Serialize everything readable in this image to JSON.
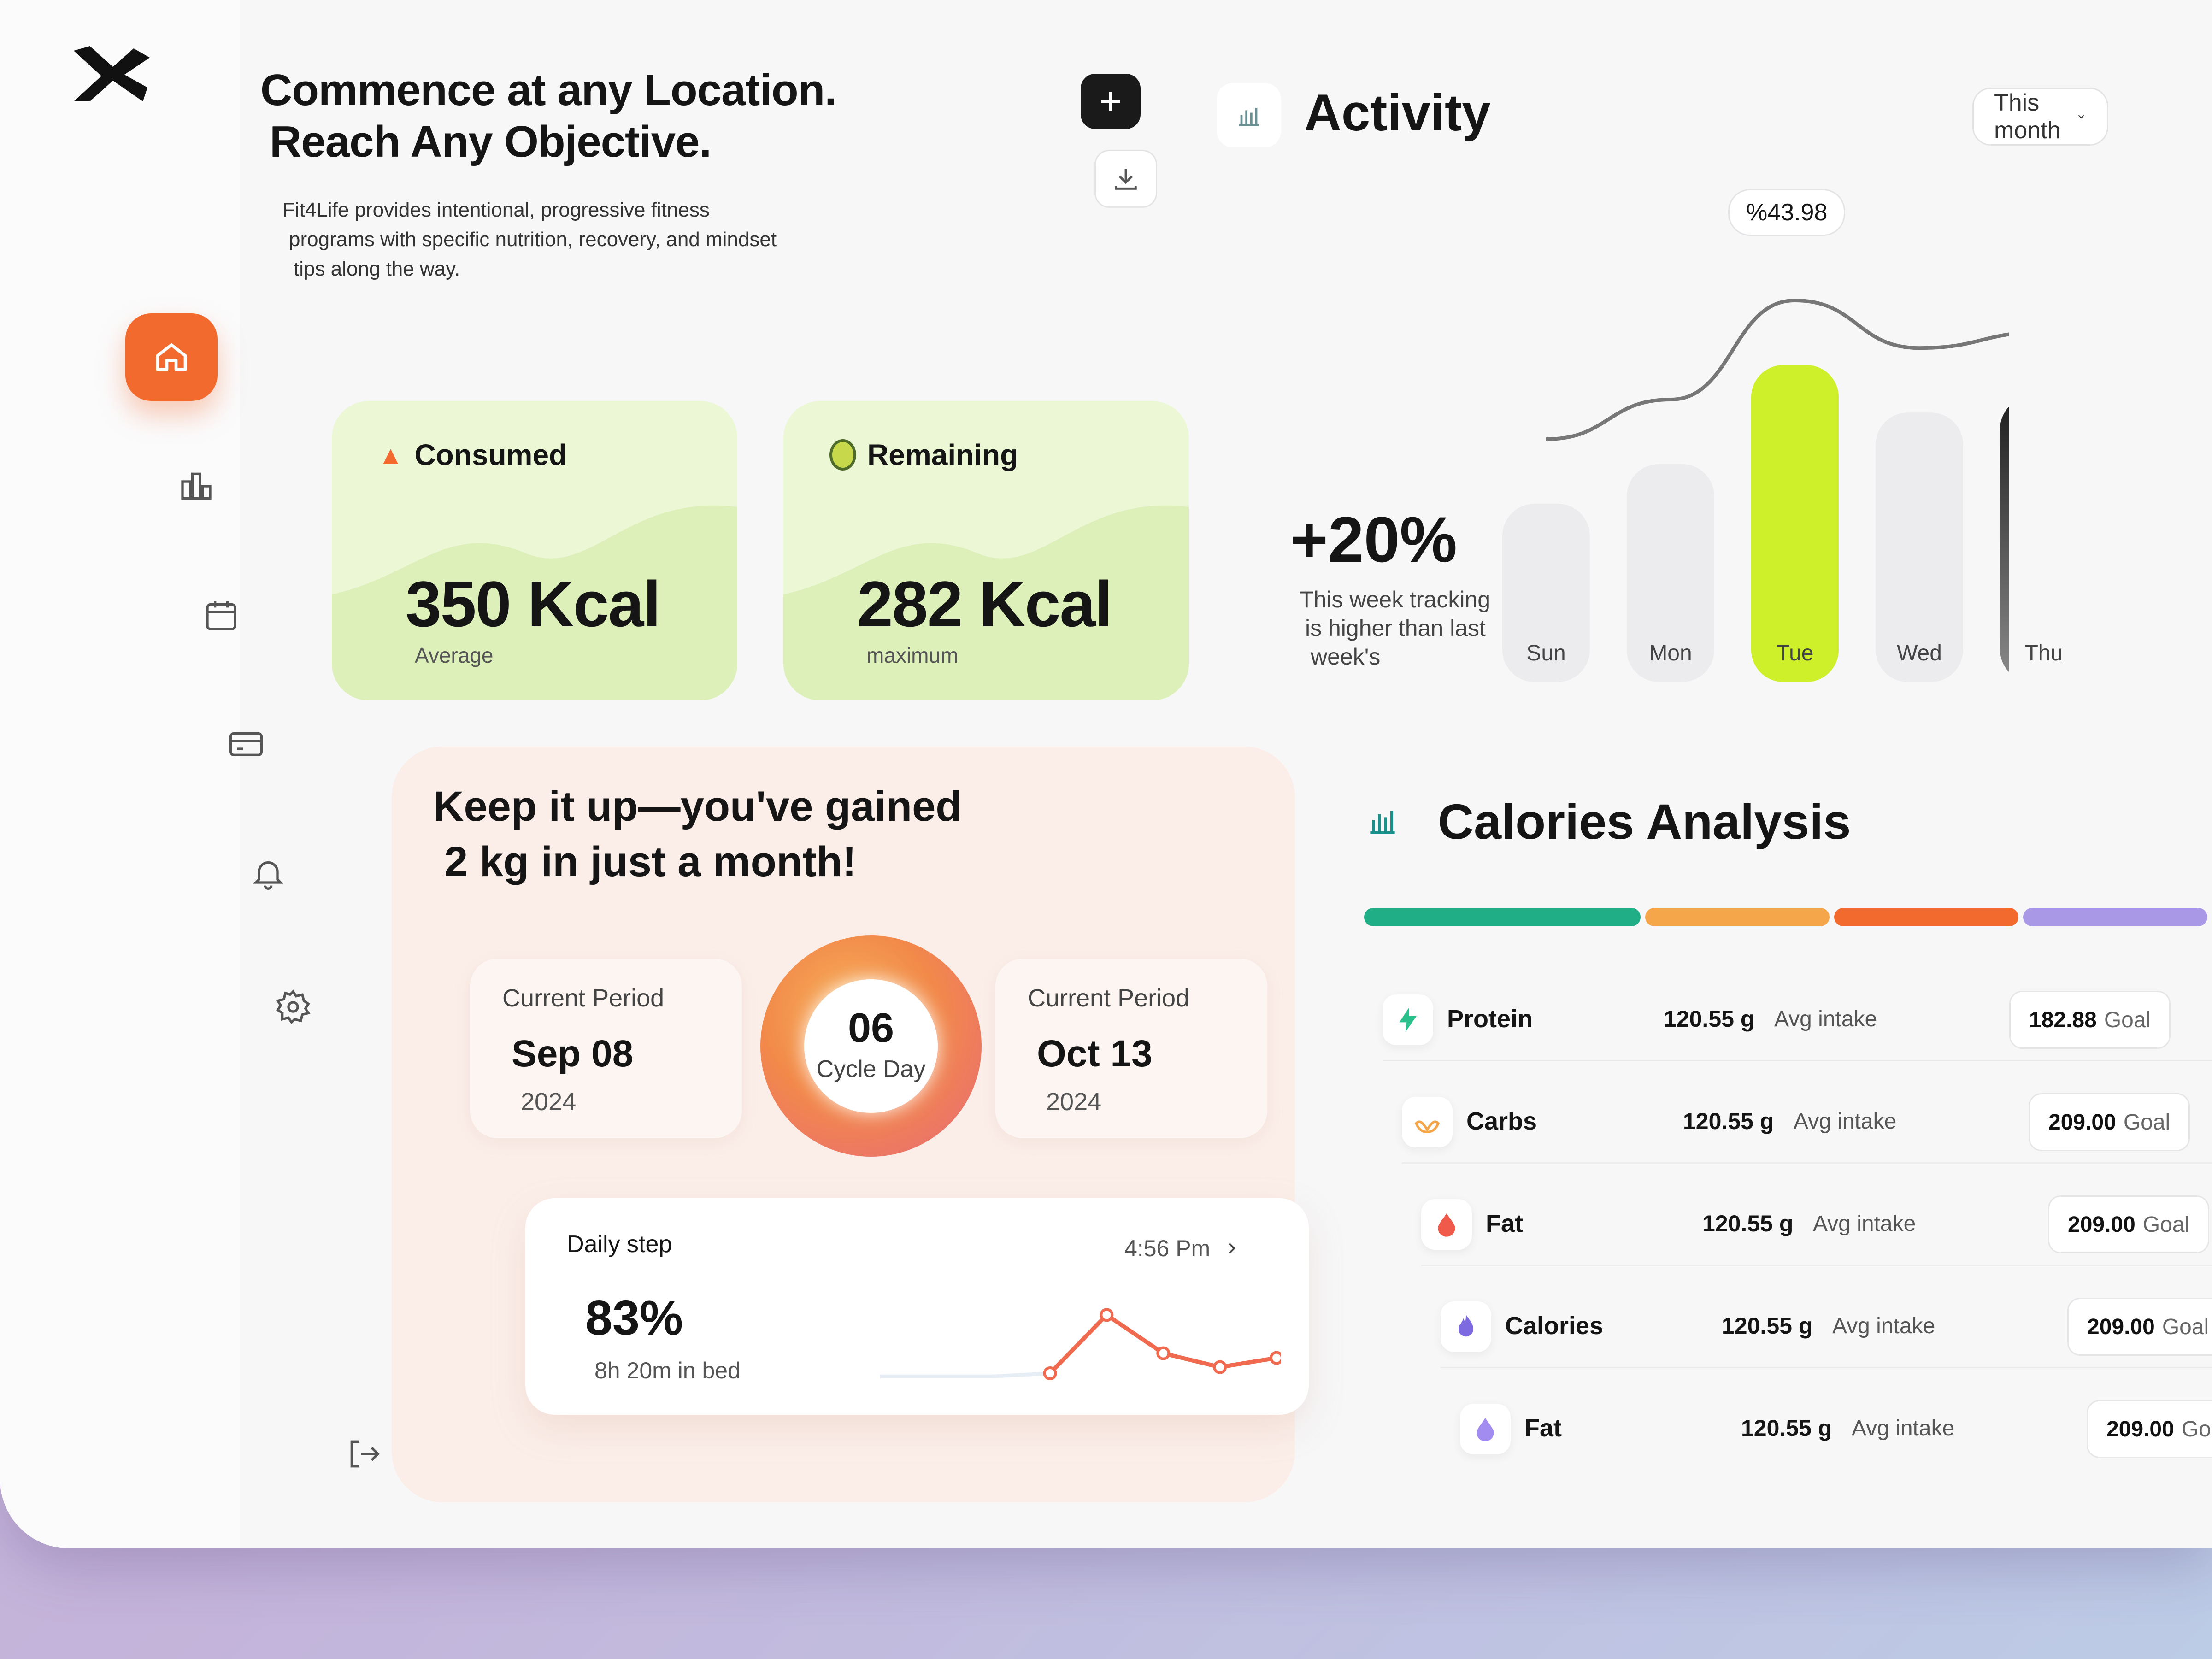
{
  "hero": {
    "title_line1": "Commence at any Location.",
    "title_line2": "Reach Any Objective.",
    "desc_line1": "Fit4Life provides intentional, progressive fitness",
    "desc_line2": "programs with specific nutrition, recovery, and mindset",
    "desc_line3": "tips along the way."
  },
  "cards": {
    "consumed": {
      "label": "Consumed",
      "value": "350 Kcal",
      "sub": "Average"
    },
    "remaining": {
      "label": "Remaining",
      "value": "282 Kcal",
      "sub": "maximum"
    }
  },
  "activity": {
    "title": "Activity",
    "period": "This month",
    "stat": "+20%",
    "note_line1": "This week tracking",
    "note_line2": "is higher than last",
    "note_line3": "week's",
    "tooltip": "%43.98",
    "chart_data": {
      "type": "bar",
      "categories": [
        "Sun",
        "Mon",
        "Tue",
        "Wed",
        "Thu"
      ],
      "values": [
        45,
        55,
        80,
        68,
        72
      ],
      "highlight": "Tue",
      "highlight_value": "%43.98",
      "colors": {
        "highlight": "#cdf02a",
        "dark": "#1e1e1e",
        "muted": "#ececee"
      }
    }
  },
  "gain": {
    "title_line1": "Keep it up—you've gained",
    "title_line2": "2 kg in just a month!",
    "start": {
      "label": "Current Period",
      "date": "Sep 08",
      "year": "2024"
    },
    "end": {
      "label": "Current Period",
      "date": "Oct 13",
      "year": "2024"
    },
    "cycle": {
      "day": "06",
      "label": "Cycle Day"
    },
    "steps": {
      "label": "Daily step",
      "time": "4:56 Pm",
      "percent": "83%",
      "sub": "8h 20m in bed",
      "chart_data": {
        "type": "line",
        "values": [
          10,
          10,
          10,
          12,
          50,
          25,
          16,
          22
        ]
      }
    }
  },
  "calories": {
    "title": "Calories Analysis",
    "bar_colors": [
      "#1fae86",
      "#f5a64a",
      "#f26a2e",
      "#a998e6"
    ],
    "rows": [
      {
        "name": "Protein",
        "value": "120.55 g",
        "avg": "Avg intake",
        "goal": "182.88",
        "goal_label": "Goal",
        "icon": "bolt-icon",
        "color": "#2bbf8c"
      },
      {
        "name": "Carbs",
        "value": "120.55 g",
        "avg": "Avg intake",
        "goal": "209.00",
        "goal_label": "Goal",
        "icon": "leaf-icon",
        "color": "#f5a64a"
      },
      {
        "name": "Fat",
        "value": "120.55 g",
        "avg": "Avg intake",
        "goal": "209.00",
        "goal_label": "Goal",
        "icon": "drop-icon",
        "color": "#ef5a4a"
      },
      {
        "name": "Calories",
        "value": "120.55 g",
        "avg": "Avg intake",
        "goal": "209.00",
        "goal_label": "Goal",
        "icon": "flame-icon",
        "color": "#7e6ae0"
      },
      {
        "name": "Fat",
        "value": "120.55 g",
        "avg": "Avg intake",
        "goal": "209.00",
        "goal_label": "Go",
        "icon": "drop-icon",
        "color": "#a38cf0"
      }
    ]
  }
}
